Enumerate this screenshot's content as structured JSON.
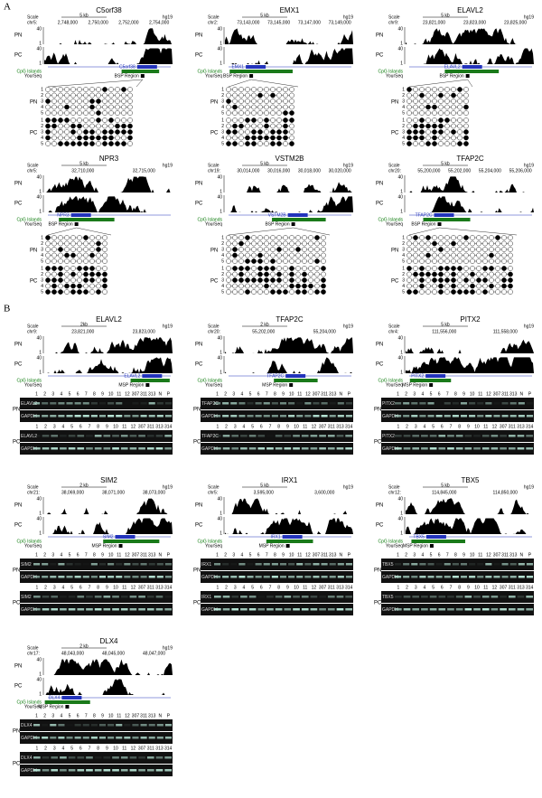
{
  "shared": {
    "pn": "PN",
    "pc": "PC",
    "cpg": "CpG Islands",
    "yourseq": "YourSeq",
    "scale": "Scale",
    "assembly": "hg19",
    "bsp": "BSP Region",
    "msp": "MSP Region",
    "tick_max": "40",
    "tick_min": "1",
    "rows": [
      "1",
      "2",
      "3",
      "4",
      "5"
    ],
    "gapdh": "GAPDH",
    "lanes_top": [
      "1",
      "2",
      "3",
      "4",
      "5",
      "6",
      "7",
      "8",
      "9",
      "10",
      "11",
      "12",
      "307",
      "311",
      "313",
      "N",
      "P"
    ],
    "lanes_bottom": [
      "1",
      "2",
      "3",
      "4",
      "5",
      "6",
      "7",
      "8",
      "9",
      "10",
      "11",
      "12",
      "307",
      "311",
      "313",
      "314"
    ]
  },
  "panel_a": {
    "label": "A",
    "genes": [
      {
        "name": "C5orf38",
        "size": "5 kb",
        "chr": "chr5:",
        "coords": [
          "2,748,000",
          "2,750,000",
          "2,752,000",
          "2,754,000"
        ]
      },
      {
        "name": "EMX1",
        "size": "5 kb",
        "chr": "chr2:",
        "coords": [
          "73,143,000",
          "73,145,000",
          "73,147,000",
          "73,149,000"
        ]
      },
      {
        "name": "ELAVL2",
        "size": "5 kb",
        "chr": "chr9:",
        "coords": [
          "23,821,000",
          "23,823,000",
          "23,825,000"
        ]
      },
      {
        "name": "NPR3",
        "size": "5 kb",
        "chr": "chr5:",
        "coords": [
          "32,710,000",
          "32,715,000"
        ]
      },
      {
        "name": "VSTM2B",
        "size": "5 kb",
        "chr": "chr19:",
        "coords": [
          "30,014,000",
          "30,016,000",
          "30,018,000",
          "30,020,000"
        ]
      },
      {
        "name": "TFAP2C",
        "size": "5 kb",
        "chr": "chr20:",
        "coords": [
          "55,200,000",
          "55,202,000",
          "55,204,000",
          "55,206,000"
        ]
      }
    ]
  },
  "panel_b": {
    "label": "B",
    "genes": [
      {
        "name": "ELAVL2",
        "size": "2kb",
        "chr": "chr9:",
        "coords": [
          "23,821,000",
          "23,823,000"
        ]
      },
      {
        "name": "TFAP2C",
        "size": "2 kb",
        "chr": "chr20:",
        "coords": [
          "55,202,000",
          "55,204,000"
        ]
      },
      {
        "name": "PITX2",
        "size": "5 kb",
        "chr": "chr4:",
        "coords": [
          "111,556,000",
          "111,558,000"
        ]
      },
      {
        "name": "SIM2",
        "size": "2 kb",
        "chr": "chr21:",
        "coords": [
          "38,069,000",
          "38,071,000",
          "38,073,000"
        ]
      },
      {
        "name": "IRX1",
        "size": "5 kb",
        "chr": "chr5:",
        "coords": [
          "3,595,000",
          "3,600,000"
        ]
      },
      {
        "name": "TBX5",
        "size": "5 kb",
        "chr": "chr12:",
        "coords": [
          "114,845,000",
          "114,850,000"
        ]
      },
      {
        "name": "DLX4",
        "size": "2 kb",
        "chr": "chr17:",
        "coords": [
          "48,043,000",
          "48,045,000",
          "48,047,000"
        ]
      }
    ]
  }
}
